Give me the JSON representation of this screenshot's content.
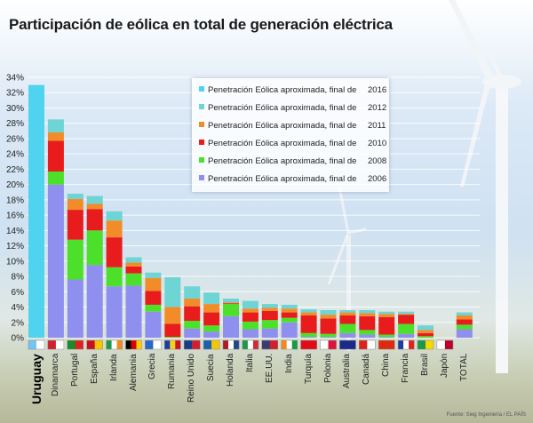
{
  "title": "Participación de eólica en total de generación eléctrica",
  "source": "Fuente: Sieg Ingeniería / EL PAÍS",
  "chart_data": {
    "type": "bar",
    "stacked": true,
    "ylim": [
      0,
      34
    ],
    "yticks": [
      "0%",
      "2%",
      "4%",
      "6%",
      "8%",
      "10%",
      "12%",
      "14%",
      "16%",
      "18%",
      "20%",
      "22%",
      "24%",
      "26%",
      "28%",
      "30%",
      "32%",
      "34%"
    ],
    "grid": true,
    "legend_position": "top-center",
    "series": [
      {
        "name": "Penetración Eólica aproximada, final de",
        "year": "2016",
        "color": "#4fd3ee"
      },
      {
        "name": "Penetración Eólica aproximada, final de",
        "year": "2012",
        "color": "#6ed4d4"
      },
      {
        "name": "Penetración Eólica aproximada, final de",
        "year": "2011",
        "color": "#f28c28"
      },
      {
        "name": "Penetración Eólica aproximada, final de",
        "year": "2010",
        "color": "#e81c1c"
      },
      {
        "name": "Penetración Eólica aproximada, final de",
        "year": "2008",
        "color": "#4de02a"
      },
      {
        "name": "Penetración Eólica aproximada, final de",
        "year": "2006",
        "color": "#8f8ff0"
      }
    ],
    "categories": [
      {
        "label": "Uruguay",
        "flag": [
          "#74c6f0",
          "#ffffff"
        ],
        "values": {
          "2016": 33
        }
      },
      {
        "label": "Dinamarca",
        "flag": [
          "#d0202e",
          "#ffffff"
        ],
        "values": {
          "2006": 20.0,
          "2008": 21.7,
          "2010": 25.7,
          "2011": 26.8,
          "2012": 28.5
        }
      },
      {
        "label": "Portugal",
        "flag": [
          "#1a8a2a",
          "#e0201c"
        ],
        "values": {
          "2006": 7.6,
          "2008": 12.8,
          "2010": 16.7,
          "2011": 18.1,
          "2012": 18.8
        }
      },
      {
        "label": "España",
        "flag": [
          "#c8101e",
          "#f7c600"
        ],
        "values": {
          "2006": 9.5,
          "2008": 14.0,
          "2010": 16.8,
          "2011": 17.5,
          "2012": 18.5
        }
      },
      {
        "label": "Irlanda",
        "flag": [
          "#1a9a44",
          "#ffffff",
          "#f38a1e"
        ],
        "values": {
          "2006": 6.7,
          "2008": 9.2,
          "2010": 13.1,
          "2011": 15.3,
          "2012": 16.5
        }
      },
      {
        "label": "Alemania",
        "flag": [
          "#000000",
          "#dd0000",
          "#ffce00"
        ],
        "values": {
          "2006": 6.8,
          "2008": 8.4,
          "2010": 9.3,
          "2011": 9.8,
          "2012": 10.5
        }
      },
      {
        "label": "Grecia",
        "flag": [
          "#2a66c8",
          "#ffffff"
        ],
        "values": {
          "2006": 3.4,
          "2008": 4.3,
          "2010": 6.1,
          "2011": 7.8,
          "2012": 8.5
        }
      },
      {
        "label": "Rumania",
        "flag": [
          "#1a3fa0",
          "#fcd116",
          "#ce1126"
        ],
        "values": {
          "2006": 0.0,
          "2008": 0.1,
          "2010": 1.8,
          "2011": 4.0,
          "2012": 7.9
        }
      },
      {
        "label": "Reino Unido",
        "flag": [
          "#1a3a8a",
          "#d0202e"
        ],
        "values": {
          "2006": 1.2,
          "2008": 2.2,
          "2010": 4.1,
          "2011": 5.1,
          "2012": 6.7
        }
      },
      {
        "label": "Suecia",
        "flag": [
          "#1a5fb0",
          "#f7c600"
        ],
        "values": {
          "2006": 0.8,
          "2008": 1.6,
          "2010": 3.3,
          "2011": 4.4,
          "2012": 5.9
        }
      },
      {
        "label": "Holanda",
        "flag": [
          "#ae1c28",
          "#ffffff",
          "#21468b"
        ],
        "values": {
          "2006": 2.8,
          "2008": 4.4,
          "2010": 4.5,
          "2011": 4.6,
          "2012": 5.1
        }
      },
      {
        "label": "Italia",
        "flag": [
          "#1a9a44",
          "#ffffff",
          "#ce2b37"
        ],
        "values": {
          "2006": 1.1,
          "2008": 2.1,
          "2010": 3.3,
          "2011": 3.8,
          "2012": 4.8
        }
      },
      {
        "label": "EE.UU.",
        "flag": [
          "#3c3b6e",
          "#d0202e"
        ],
        "values": {
          "2006": 1.2,
          "2008": 2.3,
          "2010": 3.5,
          "2011": 3.9,
          "2012": 4.4
        }
      },
      {
        "label": "India",
        "flag": [
          "#f38a1e",
          "#ffffff",
          "#1a9a44"
        ],
        "values": {
          "2006": 2.0,
          "2008": 2.6,
          "2010": 3.3,
          "2011": 3.8,
          "2012": 4.3
        }
      },
      {
        "label": "Turquía",
        "flag": [
          "#e30a17",
          "#e30a17"
        ],
        "values": {
          "2006": 0.1,
          "2008": 0.6,
          "2010": 2.9,
          "2011": 3.3,
          "2012": 3.7
        }
      },
      {
        "label": "Polonia",
        "flag": [
          "#ffffff",
          "#dc143c"
        ],
        "values": {
          "2006": 0.1,
          "2008": 0.5,
          "2010": 2.5,
          "2011": 3.0,
          "2012": 3.6
        }
      },
      {
        "label": "Australia",
        "flag": [
          "#1a2a8a",
          "#1a2a8a"
        ],
        "values": {
          "2006": 0.6,
          "2008": 1.8,
          "2010": 2.9,
          "2011": 3.3,
          "2012": 3.6
        }
      },
      {
        "label": "Canadá",
        "flag": [
          "#e0201c",
          "#ffffff"
        ],
        "values": {
          "2006": 0.4,
          "2008": 1.0,
          "2010": 2.8,
          "2011": 3.2,
          "2012": 3.6
        }
      },
      {
        "label": "China",
        "flag": [
          "#de2910",
          "#de2910"
        ],
        "values": {
          "2006": 0.1,
          "2008": 0.4,
          "2010": 2.7,
          "2011": 3.1,
          "2012": 3.4
        }
      },
      {
        "label": "Francia",
        "flag": [
          "#1a3fa0",
          "#ffffff",
          "#e0201c"
        ],
        "values": {
          "2006": 0.5,
          "2008": 1.8,
          "2010": 3.0,
          "2011": 3.1,
          "2012": 3.4
        }
      },
      {
        "label": "Brasil",
        "flag": [
          "#1a9a44",
          "#f7d800"
        ],
        "values": {
          "2006": 0.0,
          "2008": 0.2,
          "2010": 0.6,
          "2011": 1.0,
          "2012": 1.6
        }
      },
      {
        "label": "Japón",
        "flag": [
          "#ffffff",
          "#bc002d"
        ],
        "values": {
          "2006": 0.0,
          "2008": 0.0,
          "2010": 0.0,
          "2011": 0.0,
          "2012": 0.0
        }
      },
      {
        "label": "TOTAL",
        "flag": [],
        "values": {
          "2006": 1.1,
          "2008": 1.7,
          "2010": 2.4,
          "2011": 2.9,
          "2012": 3.3
        }
      }
    ]
  }
}
